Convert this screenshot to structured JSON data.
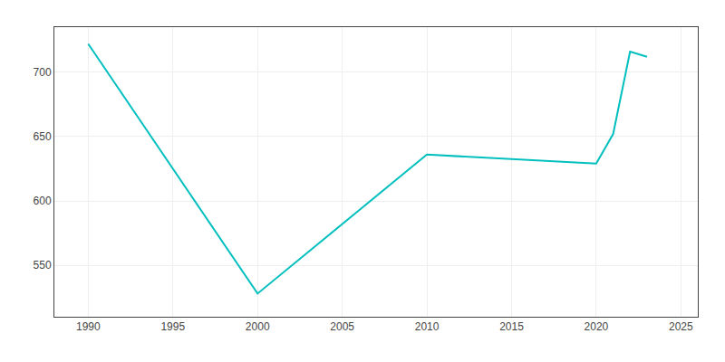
{
  "chart_data": {
    "type": "line",
    "x": [
      1990,
      2000,
      2010,
      2020,
      2021,
      2022,
      2023
    ],
    "values": [
      722,
      528,
      636,
      629,
      652,
      716,
      712
    ],
    "color": "#00BFBF",
    "xlim": [
      1988,
      2026
    ],
    "ylim": [
      510,
      735
    ],
    "xticks": [
      1990,
      1995,
      2000,
      2005,
      2010,
      2015,
      2020,
      2025
    ],
    "yticks": [
      550,
      600,
      650,
      700
    ],
    "grid": true
  }
}
